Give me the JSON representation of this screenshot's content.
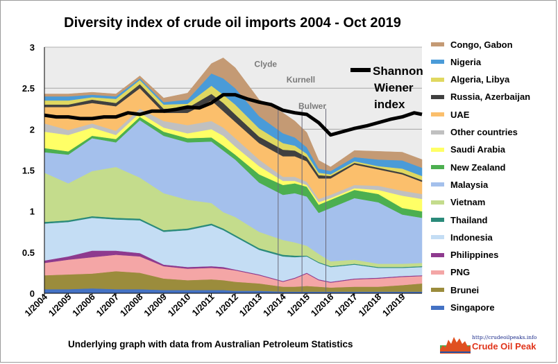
{
  "chart_data": {
    "type": "area",
    "title": "Diversity index of crude oil imports 2004 - Oct 2019",
    "footer": "Underlying graph with data from Australian Petroleum Statistics",
    "x_ticks": [
      "1/2004",
      "1/2005",
      "1/2006",
      "1/2007",
      "1/2008",
      "1/2009",
      "1/2010",
      "1/2011",
      "1/2012",
      "1/2013",
      "1/2014",
      "1/2015",
      "1/2016",
      "1/2017",
      "1/2018",
      "1/2019"
    ],
    "xlim": [
      2004.0,
      2019.83
    ],
    "ylim": [
      0,
      3
    ],
    "y_ticks": [
      "0",
      "0.5",
      "1",
      "1.5",
      "2",
      "2.5",
      "3"
    ],
    "grid": true,
    "legend_position": "right",
    "x": [
      2004.0,
      2005.0,
      2006.0,
      2007.0,
      2008.0,
      2009.0,
      2010.0,
      2011.0,
      2011.5,
      2012.0,
      2013.0,
      2014.0,
      2014.5,
      2015.0,
      2015.5,
      2016.0,
      2017.0,
      2018.0,
      2019.0,
      2019.83
    ],
    "series": [
      {
        "name": "Singapore",
        "color": "#4472c4",
        "values": [
          0.05,
          0.05,
          0.06,
          0.05,
          0.05,
          0.04,
          0.04,
          0.04,
          0.04,
          0.03,
          0.03,
          0.02,
          0.02,
          0.02,
          0.02,
          0.02,
          0.02,
          0.02,
          0.02,
          0.02
        ]
      },
      {
        "name": "Brunei",
        "color": "#9b8c3c",
        "values": [
          0.17,
          0.18,
          0.18,
          0.22,
          0.2,
          0.14,
          0.12,
          0.13,
          0.12,
          0.11,
          0.09,
          0.06,
          0.06,
          0.07,
          0.06,
          0.05,
          0.06,
          0.06,
          0.08,
          0.1
        ]
      },
      {
        "name": "PNG",
        "color": "#f4a6a6",
        "values": [
          0.15,
          0.18,
          0.2,
          0.2,
          0.2,
          0.15,
          0.14,
          0.14,
          0.14,
          0.14,
          0.1,
          0.06,
          0.1,
          0.15,
          0.08,
          0.06,
          0.09,
          0.1,
          0.1,
          0.09
        ]
      },
      {
        "name": "Philippines",
        "color": "#8e3a8e",
        "values": [
          0.03,
          0.04,
          0.08,
          0.05,
          0.04,
          0.02,
          0.02,
          0.02,
          0.02,
          0.01,
          0.01,
          0.01,
          0.01,
          0.01,
          0.01,
          0.01,
          0.01,
          0.01,
          0.01,
          0.01
        ]
      },
      {
        "name": "Indonesia",
        "color": "#c4ddf4",
        "values": [
          0.45,
          0.42,
          0.4,
          0.38,
          0.4,
          0.4,
          0.45,
          0.5,
          0.45,
          0.4,
          0.3,
          0.3,
          0.25,
          0.2,
          0.2,
          0.18,
          0.17,
          0.12,
          0.1,
          0.1
        ]
      },
      {
        "name": "Thailand",
        "color": "#2a8a7a",
        "values": [
          0.02,
          0.02,
          0.02,
          0.02,
          0.02,
          0.02,
          0.02,
          0.02,
          0.02,
          0.02,
          0.02,
          0.02,
          0.02,
          0.01,
          0.01,
          0.01,
          0.01,
          0.01,
          0.01,
          0.01
        ]
      },
      {
        "name": "Vietnam",
        "color": "#c4dc8c",
        "values": [
          0.6,
          0.45,
          0.55,
          0.62,
          0.5,
          0.45,
          0.35,
          0.25,
          0.2,
          0.22,
          0.2,
          0.18,
          0.16,
          0.12,
          0.1,
          0.06,
          0.05,
          0.04,
          0.04,
          0.04
        ]
      },
      {
        "name": "Malaysia",
        "color": "#a4c0ec",
        "values": [
          0.25,
          0.35,
          0.4,
          0.3,
          0.7,
          0.7,
          0.7,
          0.75,
          0.75,
          0.7,
          0.6,
          0.55,
          0.6,
          0.6,
          0.5,
          0.65,
          0.75,
          0.75,
          0.6,
          0.55
        ]
      },
      {
        "name": "New Zealand",
        "color": "#4caf50",
        "values": [
          0.05,
          0.04,
          0.03,
          0.04,
          0.04,
          0.05,
          0.05,
          0.05,
          0.06,
          0.06,
          0.1,
          0.12,
          0.12,
          0.12,
          0.1,
          0.1,
          0.1,
          0.1,
          0.08,
          0.08
        ]
      },
      {
        "name": "Saudi Arabia",
        "color": "#ffff66",
        "values": [
          0.2,
          0.2,
          0.1,
          0.05,
          0.05,
          0.05,
          0.06,
          0.1,
          0.12,
          0.1,
          0.1,
          0.05,
          0.03,
          0.02,
          0.03,
          0.02,
          0.02,
          0.05,
          0.15,
          0.15
        ]
      },
      {
        "name": "Other countries",
        "color": "#c0c0c0",
        "values": [
          0.1,
          0.06,
          0.05,
          0.05,
          0.05,
          0.08,
          0.1,
          0.1,
          0.1,
          0.1,
          0.08,
          0.05,
          0.05,
          0.04,
          0.04,
          0.04,
          0.04,
          0.05,
          0.06,
          0.06
        ]
      },
      {
        "name": "UAE",
        "color": "#fbbf6c",
        "values": [
          0.2,
          0.28,
          0.25,
          0.3,
          0.25,
          0.1,
          0.15,
          0.25,
          0.2,
          0.2,
          0.2,
          0.25,
          0.25,
          0.25,
          0.25,
          0.2,
          0.25,
          0.2,
          0.2,
          0.15
        ]
      },
      {
        "name": "Russia, Azerbaijan",
        "color": "#404040",
        "values": [
          0.03,
          0.03,
          0.04,
          0.04,
          0.05,
          0.05,
          0.06,
          0.08,
          0.1,
          0.09,
          0.08,
          0.08,
          0.07,
          0.05,
          0.04,
          0.03,
          0.02,
          0.02,
          0.02,
          0.02
        ]
      },
      {
        "name": "Algeria, Libya",
        "color": "#e0d860",
        "values": [
          0.05,
          0.05,
          0.03,
          0.05,
          0.05,
          0.05,
          0.05,
          0.1,
          0.1,
          0.12,
          0.1,
          0.08,
          0.06,
          0.04,
          0.03,
          0.02,
          0.02,
          0.02,
          0.05,
          0.05
        ]
      },
      {
        "name": "Nigeria",
        "color": "#4a9bd8",
        "values": [
          0.05,
          0.05,
          0.03,
          0.03,
          0.02,
          0.03,
          0.05,
          0.15,
          0.2,
          0.2,
          0.15,
          0.12,
          0.1,
          0.08,
          0.05,
          0.04,
          0.05,
          0.08,
          0.1,
          0.1
        ]
      },
      {
        "name": "Congo, Gabon",
        "color": "#c49a74",
        "values": [
          0.03,
          0.03,
          0.03,
          0.03,
          0.03,
          0.05,
          0.08,
          0.12,
          0.25,
          0.25,
          0.2,
          0.25,
          0.2,
          0.18,
          0.1,
          0.05,
          0.08,
          0.1,
          0.1,
          0.1
        ]
      }
    ],
    "index_line": {
      "name": "Shannon Wiener index",
      "x": [
        2004.0,
        2004.5,
        2005.0,
        2005.5,
        2006.0,
        2006.5,
        2007.0,
        2007.5,
        2008.0,
        2008.5,
        2009.0,
        2009.5,
        2010.0,
        2010.5,
        2011.0,
        2011.5,
        2012.0,
        2012.5,
        2013.0,
        2013.5,
        2014.0,
        2014.5,
        2015.0,
        2015.5,
        2016.0,
        2016.5,
        2017.0,
        2017.5,
        2018.0,
        2018.5,
        2019.0,
        2019.5,
        2019.83
      ],
      "values": [
        2.17,
        2.15,
        2.15,
        2.13,
        2.13,
        2.15,
        2.15,
        2.2,
        2.18,
        2.22,
        2.22,
        2.24,
        2.27,
        2.26,
        2.32,
        2.42,
        2.42,
        2.37,
        2.33,
        2.3,
        2.23,
        2.2,
        2.18,
        2.08,
        1.93,
        1.97,
        2.01,
        2.04,
        2.08,
        2.12,
        2.15,
        2.2,
        2.18
      ]
    },
    "annotations": [
      {
        "text": "Clyde",
        "x": 2012.8,
        "y": 2.76
      },
      {
        "text": "Kurnell",
        "x": 2014.15,
        "y": 2.57
      },
      {
        "text": "Bulwer",
        "x": 2014.65,
        "y": 2.25
      }
    ],
    "vertical_markers": [
      2013.8,
      2014.8,
      2015.8
    ]
  },
  "logo": {
    "url": "http://crudeoilpeaks.info",
    "name": "Crude Oil Peak"
  }
}
